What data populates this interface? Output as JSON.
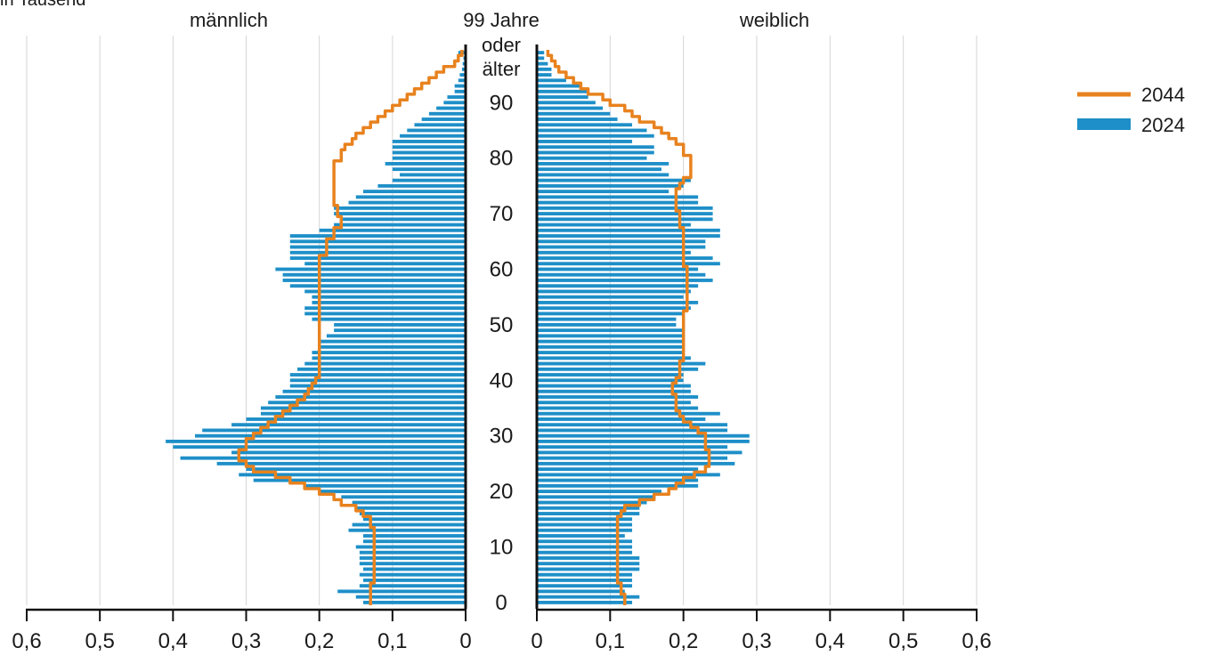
{
  "chart_data": {
    "type": "bar",
    "subtitle": "in Tausend",
    "left_label": "männlich",
    "right_label": "weiblich",
    "age_top_label": [
      "99 Jahre",
      "oder",
      "älter"
    ],
    "age_ticks": [
      "0",
      "10",
      "20",
      "30",
      "40",
      "50",
      "60",
      "70",
      "80",
      "90"
    ],
    "x_ticks": [
      "0,6",
      "0,5",
      "0,4",
      "0,3",
      "0,2",
      "0,1",
      "0"
    ],
    "x_ticks_right": [
      "0",
      "0,1",
      "0,2",
      "0,3",
      "0,4",
      "0,5",
      "0,6"
    ],
    "xlim": [
      0,
      0.6
    ],
    "ages": [
      0,
      99
    ],
    "grid": true,
    "legend_position": "right",
    "series": [
      {
        "name": "2044",
        "kind": "line",
        "color": "#e8821e",
        "male": [
          0.13,
          0.13,
          0.13,
          0.13,
          0.125,
          0.125,
          0.125,
          0.125,
          0.125,
          0.125,
          0.125,
          0.125,
          0.125,
          0.125,
          0.13,
          0.13,
          0.14,
          0.15,
          0.17,
          0.18,
          0.2,
          0.22,
          0.24,
          0.26,
          0.29,
          0.3,
          0.31,
          0.31,
          0.3,
          0.3,
          0.29,
          0.28,
          0.27,
          0.26,
          0.25,
          0.24,
          0.23,
          0.22,
          0.215,
          0.21,
          0.205,
          0.2,
          0.2,
          0.2,
          0.2,
          0.2,
          0.2,
          0.2,
          0.2,
          0.2,
          0.2,
          0.2,
          0.2,
          0.2,
          0.2,
          0.2,
          0.2,
          0.2,
          0.2,
          0.2,
          0.2,
          0.2,
          0.2,
          0.19,
          0.19,
          0.19,
          0.18,
          0.18,
          0.17,
          0.17,
          0.175,
          0.175,
          0.18,
          0.18,
          0.18,
          0.18,
          0.18,
          0.18,
          0.18,
          0.18,
          0.17,
          0.17,
          0.165,
          0.155,
          0.15,
          0.14,
          0.13,
          0.12,
          0.11,
          0.1,
          0.09,
          0.08,
          0.07,
          0.06,
          0.05,
          0.04,
          0.03,
          0.015,
          0.01,
          0.005
        ],
        "female": [
          0.12,
          0.12,
          0.115,
          0.115,
          0.11,
          0.11,
          0.11,
          0.11,
          0.11,
          0.11,
          0.11,
          0.11,
          0.11,
          0.11,
          0.11,
          0.11,
          0.115,
          0.12,
          0.14,
          0.16,
          0.18,
          0.19,
          0.2,
          0.215,
          0.23,
          0.235,
          0.235,
          0.235,
          0.23,
          0.23,
          0.23,
          0.22,
          0.21,
          0.2,
          0.195,
          0.19,
          0.19,
          0.19,
          0.185,
          0.185,
          0.19,
          0.195,
          0.195,
          0.195,
          0.2,
          0.2,
          0.2,
          0.2,
          0.2,
          0.2,
          0.2,
          0.2,
          0.2,
          0.205,
          0.205,
          0.205,
          0.205,
          0.205,
          0.205,
          0.205,
          0.205,
          0.2,
          0.2,
          0.2,
          0.2,
          0.2,
          0.2,
          0.2,
          0.195,
          0.195,
          0.195,
          0.19,
          0.19,
          0.19,
          0.19,
          0.195,
          0.2,
          0.21,
          0.21,
          0.21,
          0.21,
          0.2,
          0.2,
          0.19,
          0.18,
          0.17,
          0.16,
          0.14,
          0.13,
          0.12,
          0.1,
          0.09,
          0.07,
          0.06,
          0.05,
          0.04,
          0.03,
          0.025,
          0.02,
          0.015
        ]
      },
      {
        "name": "2024",
        "kind": "bar",
        "color": "#1e8fc8",
        "male": [
          0.14,
          0.15,
          0.175,
          0.145,
          0.14,
          0.145,
          0.14,
          0.145,
          0.145,
          0.145,
          0.15,
          0.14,
          0.14,
          0.16,
          0.155,
          0.14,
          0.145,
          0.15,
          0.155,
          0.17,
          0.2,
          0.22,
          0.29,
          0.31,
          0.3,
          0.34,
          0.39,
          0.32,
          0.4,
          0.41,
          0.37,
          0.36,
          0.32,
          0.3,
          0.28,
          0.28,
          0.27,
          0.26,
          0.25,
          0.24,
          0.24,
          0.24,
          0.23,
          0.22,
          0.21,
          0.21,
          0.2,
          0.2,
          0.19,
          0.18,
          0.18,
          0.21,
          0.22,
          0.22,
          0.21,
          0.21,
          0.22,
          0.24,
          0.25,
          0.25,
          0.26,
          0.22,
          0.24,
          0.24,
          0.24,
          0.24,
          0.24,
          0.2,
          0.18,
          0.17,
          0.18,
          0.18,
          0.16,
          0.15,
          0.14,
          0.12,
          0.1,
          0.09,
          0.1,
          0.11,
          0.1,
          0.1,
          0.1,
          0.1,
          0.09,
          0.08,
          0.07,
          0.06,
          0.05,
          0.04,
          0.03,
          0.025,
          0.015,
          0.015,
          0.01,
          0.008,
          0.005,
          0.004,
          0.003,
          0.01
        ],
        "female": [
          0.13,
          0.14,
          0.12,
          0.13,
          0.13,
          0.13,
          0.14,
          0.14,
          0.14,
          0.13,
          0.13,
          0.13,
          0.12,
          0.13,
          0.13,
          0.13,
          0.14,
          0.14,
          0.15,
          0.16,
          0.17,
          0.22,
          0.22,
          0.25,
          0.22,
          0.27,
          0.26,
          0.28,
          0.26,
          0.29,
          0.29,
          0.26,
          0.26,
          0.23,
          0.25,
          0.22,
          0.21,
          0.22,
          0.21,
          0.21,
          0.2,
          0.2,
          0.22,
          0.23,
          0.21,
          0.2,
          0.2,
          0.2,
          0.2,
          0.2,
          0.19,
          0.19,
          0.2,
          0.21,
          0.22,
          0.2,
          0.21,
          0.22,
          0.24,
          0.23,
          0.22,
          0.25,
          0.24,
          0.21,
          0.23,
          0.23,
          0.25,
          0.25,
          0.21,
          0.24,
          0.24,
          0.24,
          0.22,
          0.22,
          0.18,
          0.2,
          0.21,
          0.18,
          0.17,
          0.18,
          0.15,
          0.16,
          0.16,
          0.13,
          0.16,
          0.15,
          0.13,
          0.11,
          0.1,
          0.09,
          0.08,
          0.07,
          0.07,
          0.06,
          0.04,
          0.02,
          0.02,
          0.015,
          0.01,
          0.01
        ]
      }
    ]
  }
}
